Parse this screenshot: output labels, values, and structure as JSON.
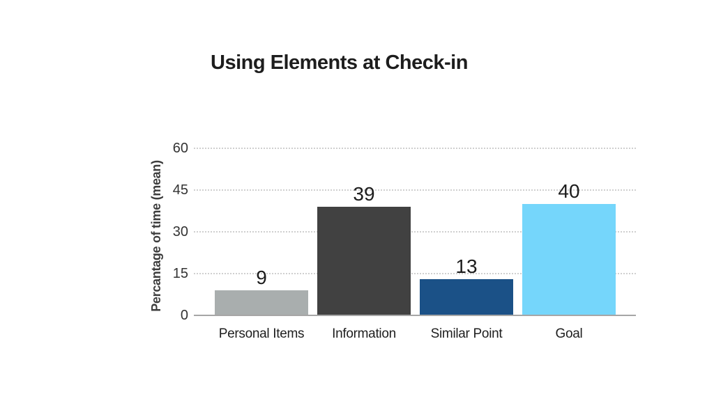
{
  "chart_data": {
    "type": "bar",
    "title": "Using Elements at Check-in",
    "ylabel": "Percantage of time (mean)",
    "xlabel": "",
    "categories": [
      "Personal Items",
      "Information",
      "Similar Point",
      "Goal"
    ],
    "values": [
      9,
      39,
      13,
      40
    ],
    "value_labels": [
      "9",
      "39",
      "13",
      "40"
    ],
    "bar_colors": [
      "#a9aeae",
      "#414141",
      "#1b5187",
      "#75d6fb"
    ],
    "yticks": [
      0,
      15,
      30,
      45,
      60
    ],
    "ylim": [
      0,
      60
    ],
    "grid": "horizontal dotted gridlines at each y tick",
    "legend": "none",
    "background_color": "#ffffff",
    "title_color": "#1d1d1d",
    "axis_text_color": "#3d3d3d",
    "grid_color": "#cfcfcf",
    "axis_line_color": "#a6a6a6"
  }
}
